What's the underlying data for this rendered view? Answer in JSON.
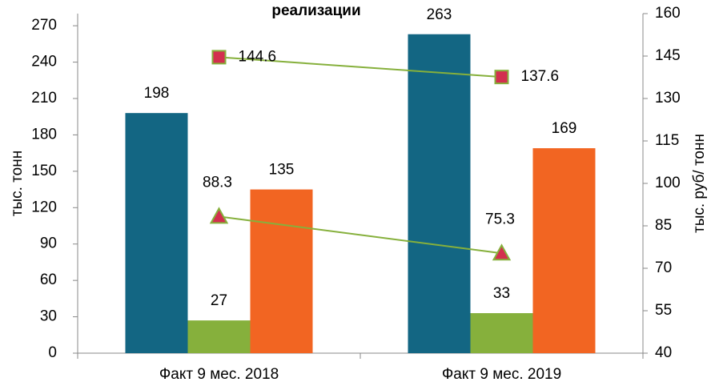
{
  "chart_data": {
    "type": "bar",
    "title": "реализации",
    "y_label": "тыс. тонн",
    "y2_label": "тыс. руб/ тонн",
    "categories": [
      "Факт 9 мес. 2018",
      "Факт 9 мес. 2019"
    ],
    "series": [
      {
        "color": "#136683",
        "values": [
          198,
          263
        ]
      },
      {
        "color": "#86b03c",
        "values": [
          27,
          33
        ]
      },
      {
        "color": "#f26522",
        "values": [
          135,
          169
        ]
      },
      {
        "type": "line",
        "axis": "y2",
        "marker": "square",
        "color": "#86b03c",
        "marker_color": "#d32f4f",
        "values": [
          144.6,
          137.6
        ]
      },
      {
        "type": "line",
        "axis": "y2",
        "marker": "triangle",
        "color": "#86b03c",
        "marker_color": "#d32f4f",
        "values": [
          88.3,
          75.3
        ]
      }
    ],
    "ylim": [
      0,
      280
    ],
    "yticks": [
      0,
      30,
      60,
      90,
      120,
      150,
      180,
      210,
      240,
      270
    ],
    "y2lim": [
      40,
      160
    ],
    "y2ticks": [
      40,
      55,
      70,
      85,
      100,
      115,
      130,
      145,
      160
    ]
  }
}
